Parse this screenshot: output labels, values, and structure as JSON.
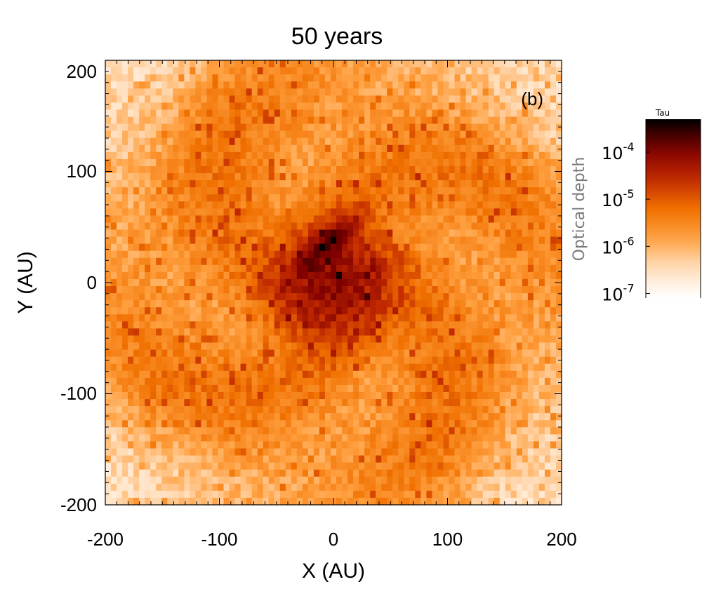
{
  "chart_data": {
    "type": "heatmap",
    "title": "50 years",
    "panel_label": "(b)",
    "xlabel": "X (AU)",
    "ylabel": "Y (AU)",
    "xlim": [
      -200,
      200
    ],
    "ylim": [
      -200,
      200
    ],
    "x_ticks": [
      "-200",
      "-100",
      "0",
      "100",
      "200"
    ],
    "y_ticks": [
      "-200",
      "-100",
      "0",
      "100",
      "200"
    ],
    "grid_size": [
      81,
      63
    ],
    "colorbar": {
      "title": "Tau",
      "label": "Optical depth",
      "scale": "log",
      "range": [
        8e-08,
        0.0005
      ],
      "ticks": [
        {
          "mantissa": "10",
          "exponent": "-4",
          "value": 0.0001
        },
        {
          "mantissa": "10",
          "exponent": "-5",
          "value": 1e-05
        },
        {
          "mantissa": "10",
          "exponent": "-6",
          "value": 1e-06
        },
        {
          "mantissa": "10",
          "exponent": "-7",
          "value": 1e-07
        }
      ]
    },
    "features": {
      "peak": {
        "x": -5,
        "y": 35,
        "tau": 0.0003
      },
      "center": {
        "x": 0,
        "y": 0,
        "tau": 8e-05
      },
      "core_radius_au": 70,
      "halo_tau": 3e-06,
      "corner_tau": 1e-07
    },
    "colormap": [
      "#ffffff",
      "#ffe0c0",
      "#ffa040",
      "#f07000",
      "#c02800",
      "#800000",
      "#000000"
    ]
  }
}
